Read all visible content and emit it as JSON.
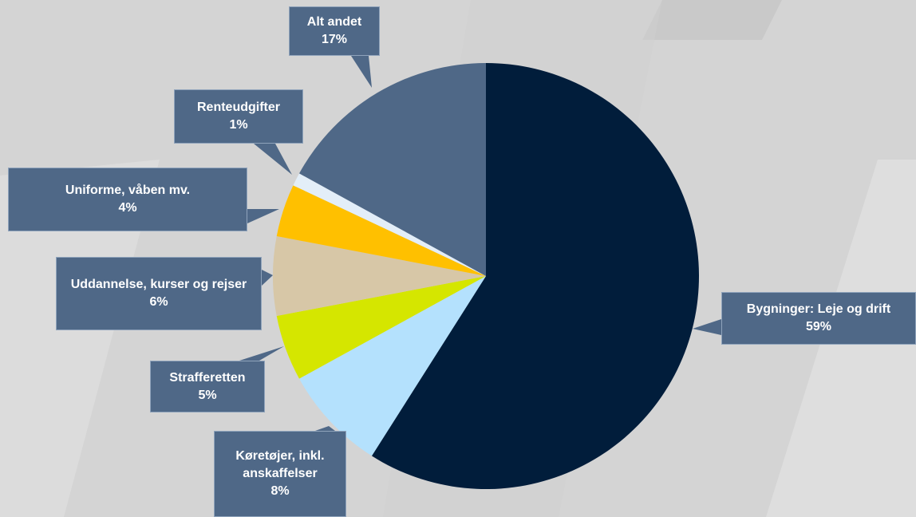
{
  "chart_data": {
    "type": "pie",
    "categories": [
      "Bygninger: Leje og drift",
      "Køretøjer, inkl. anskaffelser",
      "Strafferetten",
      "Uddannelse, kurser og rejser",
      "Uniforme, våben mv.",
      "Renteudgifter",
      "Alt andet"
    ],
    "values": [
      59,
      8,
      5,
      6,
      4,
      1,
      17
    ],
    "value_labels": [
      "59%",
      "8%",
      "5%",
      "6%",
      "4%",
      "1%",
      "17%"
    ],
    "colors": [
      "#011d3b",
      "#b4e1fd",
      "#d5e600",
      "#d7c7a7",
      "#ffc000",
      "#e3eef8",
      "#4f6887"
    ]
  }
}
